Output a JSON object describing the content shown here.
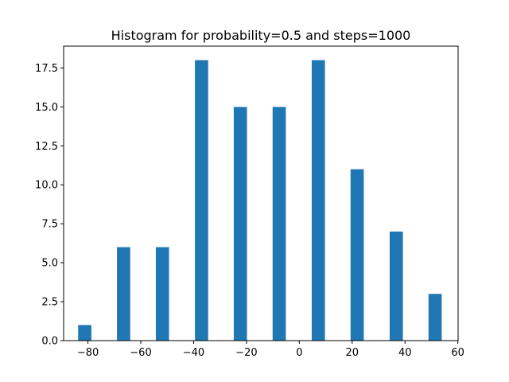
{
  "chart_data": {
    "type": "bar",
    "title": "Histogram for probability=0.5 and steps=1000",
    "xlabel": "",
    "ylabel": "",
    "xlim": [
      -89.2,
      60.1
    ],
    "ylim": [
      0,
      18.9
    ],
    "x_ticks": [
      -80,
      -60,
      -40,
      -20,
      0,
      20,
      40,
      60
    ],
    "x_tick_labels": [
      "−80",
      "−60",
      "−40",
      "−20",
      "0",
      "20",
      "40",
      "60"
    ],
    "y_ticks": [
      0,
      2.5,
      5,
      7.5,
      10,
      12.5,
      15,
      17.5
    ],
    "y_tick_labels": [
      "0.0",
      "2.5",
      "5.0",
      "7.5",
      "10.0",
      "12.5",
      "15.0",
      "17.5"
    ],
    "bar_width": 5.0,
    "bars": [
      {
        "x": -81.2,
        "value": 1
      },
      {
        "x": -66.5,
        "value": 6
      },
      {
        "x": -51.8,
        "value": 6
      },
      {
        "x": -37.0,
        "value": 18
      },
      {
        "x": -22.3,
        "value": 15
      },
      {
        "x": -7.6,
        "value": 15
      },
      {
        "x": 7.2,
        "value": 18
      },
      {
        "x": 21.9,
        "value": 11
      },
      {
        "x": 36.7,
        "value": 7
      },
      {
        "x": 51.4,
        "value": 3
      }
    ],
    "grid": false,
    "bar_color": "#1f77b4"
  }
}
